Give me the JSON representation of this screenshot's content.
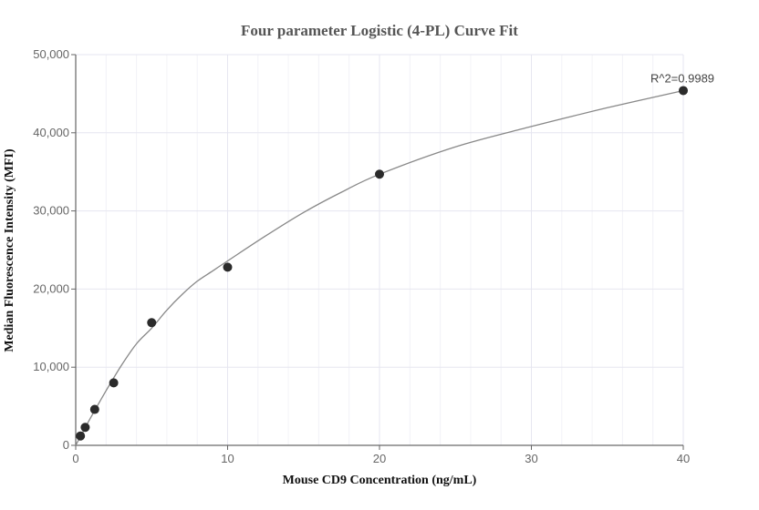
{
  "chart_data": {
    "type": "scatter",
    "title": "Four parameter Logistic (4-PL) Curve Fit",
    "xlabel": "Mouse CD9 Concentration (ng/mL)",
    "ylabel": "Median Fluorescence Intensity (MFI)",
    "xlim": [
      0,
      40
    ],
    "ylim": [
      0,
      50000
    ],
    "x_ticks": [
      0,
      10,
      20,
      30,
      40
    ],
    "x_tick_labels": [
      "0",
      "10",
      "20",
      "30",
      "40"
    ],
    "y_ticks": [
      0,
      10000,
      20000,
      30000,
      40000,
      50000
    ],
    "y_tick_labels": [
      "0",
      "10,000",
      "20,000",
      "30,000",
      "40,000",
      "50,000"
    ],
    "grid": true,
    "series": [
      {
        "x": [
          0.3125,
          0.625,
          1.25,
          2.5,
          5,
          10,
          20,
          40
        ],
        "y": [
          1200,
          2300,
          4600,
          8000,
          15700,
          22800,
          34700,
          45400
        ]
      }
    ],
    "fit_curve": {
      "model": "4PL",
      "x": [
        0,
        0.5,
        1,
        2,
        3,
        4,
        5,
        6,
        7,
        8,
        9,
        10,
        12.5,
        15,
        17.5,
        20,
        25,
        30,
        35,
        40
      ],
      "y": [
        0,
        1800,
        3600,
        7000,
        10200,
        13000,
        15000,
        17300,
        19300,
        21000,
        22300,
        23600,
        26800,
        29800,
        32400,
        34700,
        38200,
        40800,
        43200,
        45400
      ]
    },
    "annotations": [
      {
        "text": "R^2=0.9989",
        "x": 40,
        "y": 45400
      }
    ],
    "colors": {
      "points": "#2b2b2b",
      "curve": "#888888",
      "grid": "#e6e6f0"
    }
  }
}
